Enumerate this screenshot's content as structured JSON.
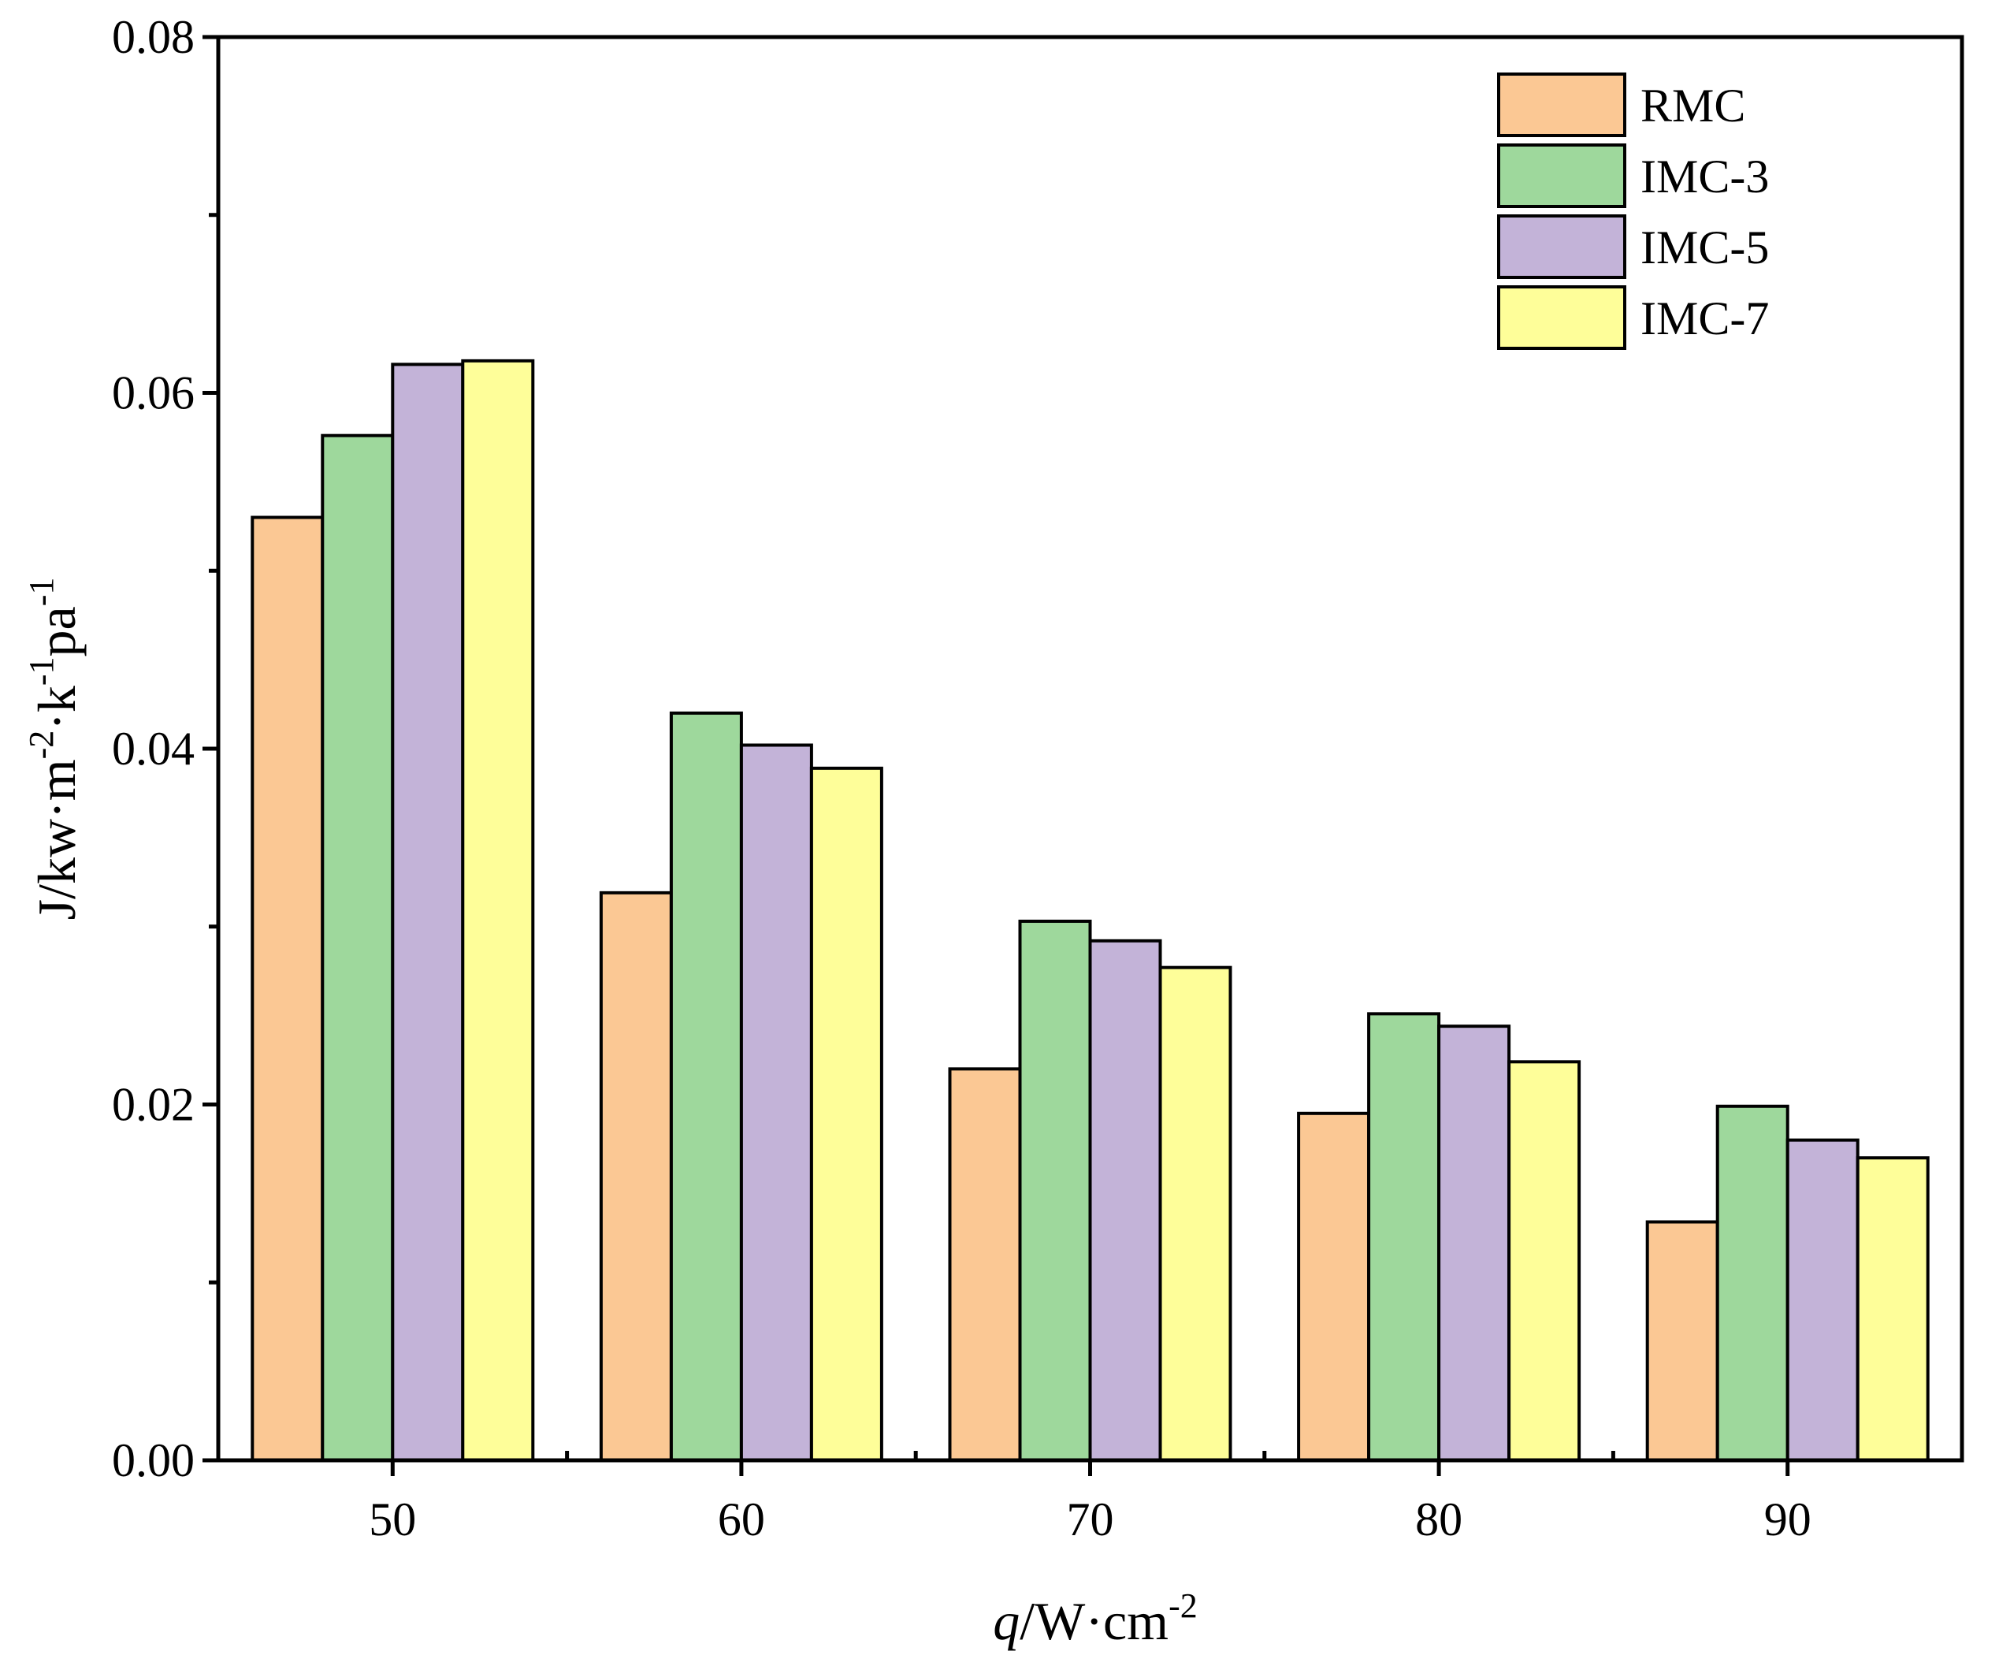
{
  "chart_data": {
    "type": "bar",
    "title": "",
    "xlabel": {
      "italic": "q",
      "main": "/W·cm",
      "sup": "-2"
    },
    "ylabel": {
      "parts": [
        "J/kw·m",
        "-2",
        "·k",
        "-1",
        "pa",
        "-1"
      ]
    },
    "categories": [
      "50",
      "60",
      "70",
      "80",
      "90"
    ],
    "ylim": [
      0,
      0.08
    ],
    "yticks": [
      "0.00",
      "0.02",
      "0.04",
      "0.06",
      "0.08"
    ],
    "ytick_values": [
      0,
      0.02,
      0.04,
      0.06,
      0.08
    ],
    "yminor_values": [
      0.01,
      0.03,
      0.05,
      0.07
    ],
    "legend_position": "top-right",
    "series": [
      {
        "name": "RMC",
        "color": "#FBC894",
        "values": [
          0.053,
          0.0319,
          0.022,
          0.0195,
          0.0134
        ]
      },
      {
        "name": "IMC-3",
        "color": "#9ED89C",
        "values": [
          0.0576,
          0.042,
          0.0303,
          0.0251,
          0.0199
        ]
      },
      {
        "name": "IMC-5",
        "color": "#C3B3D8",
        "values": [
          0.0616,
          0.0402,
          0.0292,
          0.0244,
          0.018
        ]
      },
      {
        "name": "IMC-7",
        "color": "#FEFE99",
        "values": [
          0.0618,
          0.0389,
          0.0277,
          0.0224,
          0.017
        ]
      }
    ]
  }
}
